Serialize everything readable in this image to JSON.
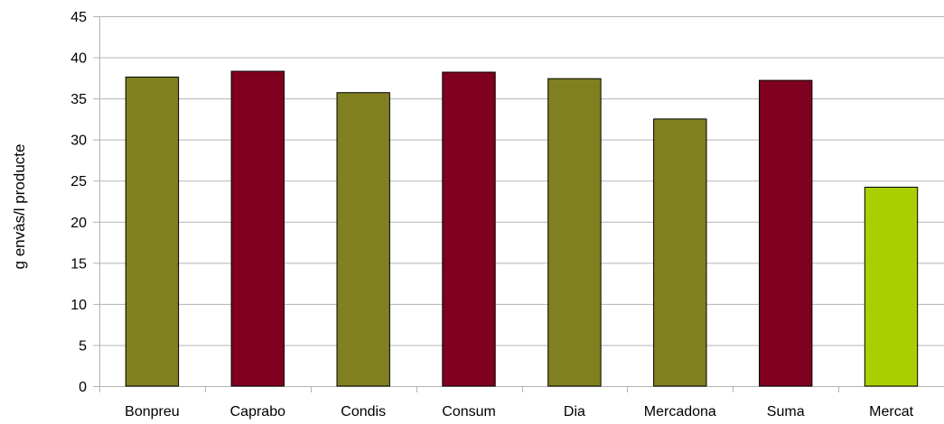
{
  "chart_data": {
    "type": "bar",
    "title": "",
    "xlabel": "",
    "ylabel": "g envàs/l producte",
    "categories": [
      "Bonpreu",
      "Caprabo",
      "Condis",
      "Consum",
      "Dia",
      "Mercadona",
      "Suma",
      "Mercat"
    ],
    "values": [
      37.6,
      38.3,
      35.7,
      38.2,
      37.4,
      32.5,
      37.2,
      24.2
    ],
    "bar_colors": [
      "#808020",
      "#800020",
      "#808020",
      "#800020",
      "#808020",
      "#808020",
      "#800020",
      "#aacf00"
    ],
    "ylim": [
      0,
      45
    ],
    "yticks": [
      0,
      5,
      10,
      15,
      20,
      25,
      30,
      35,
      40,
      45
    ],
    "grid": true,
    "legend": "none"
  },
  "colors": {
    "gridline": "#b3b3b3",
    "axis": "#b3b3b3",
    "bar_outline": "#000000"
  }
}
